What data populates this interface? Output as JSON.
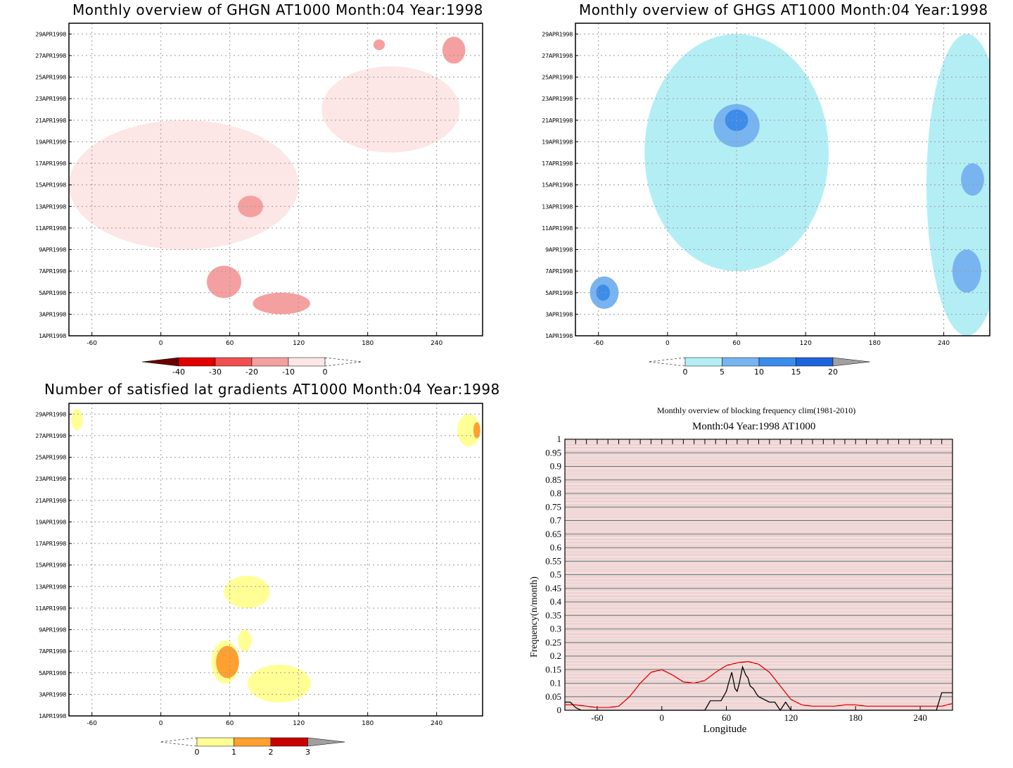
{
  "chart_data": [
    {
      "type": "heatmap",
      "title": "Monthly overview of GHGN AT1000 Month:04 Year:1998",
      "x_ticks": [
        "-60",
        "0",
        "60",
        "120",
        "180",
        "240"
      ],
      "y_ticks": [
        "1APR1998",
        "3APR1998",
        "5APR1998",
        "7APR1998",
        "9APR1998",
        "11APR1998",
        "13APR1998",
        "15APR1998",
        "17APR1998",
        "19APR1998",
        "21APR1998",
        "23APR1998",
        "25APR1998",
        "27APR1998",
        "29APR1998"
      ],
      "xlim": [
        -80,
        280
      ],
      "colorbar": {
        "labels": [
          "-40",
          "-30",
          "-20",
          "-10",
          "0"
        ],
        "colors": [
          "#6b0000",
          "#e00000",
          "#f05050",
          "#f5a0a0",
          "#fde6e6"
        ]
      },
      "regions": [
        {
          "level": "-10 to 0",
          "lon": 20,
          "day": 15,
          "lon_span": 200,
          "day_span": 12
        },
        {
          "level": "-10 to 0",
          "lon": 200,
          "day": 22,
          "lon_span": 120,
          "day_span": 8
        },
        {
          "level": "-20 to -10",
          "lon": 78,
          "day": 13,
          "lon_span": 22,
          "day_span": 2
        },
        {
          "level": "-20 to -10",
          "lon": 55,
          "day": 6,
          "lon_span": 30,
          "day_span": 3
        },
        {
          "level": "-20 to -10",
          "lon": 105,
          "day": 4,
          "lon_span": 50,
          "day_span": 2
        },
        {
          "level": "-20 to -10",
          "lon": 255,
          "day": 27.5,
          "lon_span": 20,
          "day_span": 2.5
        },
        {
          "level": "-20 to -10",
          "lon": 190,
          "day": 28,
          "lon_span": 10,
          "day_span": 1
        }
      ]
    },
    {
      "type": "heatmap",
      "title": "Monthly overview of GHGS AT1000 Month:04 Year:1998",
      "x_ticks": [
        "-60",
        "0",
        "60",
        "120",
        "180",
        "240"
      ],
      "y_ticks": [
        "1APR1998",
        "3APR1998",
        "5APR1998",
        "7APR1998",
        "9APR1998",
        "11APR1998",
        "13APR1998",
        "15APR1998",
        "17APR1998",
        "19APR1998",
        "21APR1998",
        "23APR1998",
        "25APR1998",
        "27APR1998",
        "29APR1998"
      ],
      "xlim": [
        -80,
        280
      ],
      "colorbar": {
        "labels": [
          "0",
          "5",
          "10",
          "15",
          "20"
        ],
        "colors": [
          "#b4eef5",
          "#78b4f0",
          "#3c8cea",
          "#1e64dc",
          "#a0a0a0"
        ]
      },
      "regions": [
        {
          "level": "0 to 5",
          "lon": 60,
          "day": 18,
          "lon_span": 160,
          "day_span": 22
        },
        {
          "level": "0 to 5",
          "lon": 260,
          "day": 15,
          "lon_span": 70,
          "day_span": 28
        },
        {
          "level": "5 to 10",
          "lon": 60,
          "day": 20.5,
          "lon_span": 40,
          "day_span": 4
        },
        {
          "level": "10 to 15",
          "lon": 60,
          "day": 21,
          "lon_span": 20,
          "day_span": 2
        },
        {
          "level": "5 to 10",
          "lon": -55,
          "day": 5,
          "lon_span": 25,
          "day_span": 3
        },
        {
          "level": "10 to 15",
          "lon": -56,
          "day": 5,
          "lon_span": 12,
          "day_span": 1.5
        },
        {
          "level": "5 to 10",
          "lon": 260,
          "day": 7,
          "lon_span": 25,
          "day_span": 4
        },
        {
          "level": "5 to 10",
          "lon": 265,
          "day": 15.5,
          "lon_span": 20,
          "day_span": 3
        }
      ]
    },
    {
      "type": "heatmap",
      "title": "Number of satisfied lat gradients AT1000 Month:04 Year:1998",
      "x_ticks": [
        "-60",
        "0",
        "60",
        "120",
        "180",
        "240"
      ],
      "y_ticks": [
        "1APR1998",
        "3APR1998",
        "5APR1998",
        "7APR1998",
        "9APR1998",
        "11APR1998",
        "13APR1998",
        "15APR1998",
        "17APR1998",
        "19APR1998",
        "21APR1998",
        "23APR1998",
        "25APR1998",
        "27APR1998",
        "29APR1998"
      ],
      "xlim": [
        -80,
        280
      ],
      "colorbar": {
        "labels": [
          "0",
          "1",
          "2",
          "3"
        ],
        "colors": [
          "#ffff96",
          "#ffa030",
          "#c80000",
          "#a0a0a0"
        ]
      },
      "regions": [
        {
          "level": "0 to 1",
          "lon": -73,
          "day": 28.5,
          "lon_span": 10,
          "day_span": 2
        },
        {
          "level": "0 to 1",
          "lon": 268,
          "day": 27.5,
          "lon_span": 20,
          "day_span": 3
        },
        {
          "level": "1 to 2",
          "lon": 275,
          "day": 27.5,
          "lon_span": 6,
          "day_span": 1.5
        },
        {
          "level": "0 to 1",
          "lon": 75,
          "day": 12.5,
          "lon_span": 40,
          "day_span": 3
        },
        {
          "level": "0 to 1",
          "lon": 73,
          "day": 8,
          "lon_span": 12,
          "day_span": 2
        },
        {
          "level": "0 to 1",
          "lon": 56,
          "day": 6,
          "lon_span": 24,
          "day_span": 4
        },
        {
          "level": "1 to 2",
          "lon": 58,
          "day": 6,
          "lon_span": 20,
          "day_span": 3
        },
        {
          "level": "0 to 1",
          "lon": 103,
          "day": 4,
          "lon_span": 55,
          "day_span": 3.5
        }
      ]
    },
    {
      "type": "line",
      "title": "Monthly overview of blocking frequency clim(1981-2010)",
      "subtitle": "Month:04 Year:1998  AT1000",
      "xlabel": "Longitude",
      "ylabel": "Frequency(n/month)",
      "xlim": [
        -90,
        270
      ],
      "ylim": [
        0,
        1
      ],
      "x_ticks": [
        "-60",
        "0",
        "60",
        "120",
        "180",
        "240"
      ],
      "y_ticks": [
        "0",
        "0.05",
        "0.1",
        "0.15",
        "0.2",
        "0.25",
        "0.3",
        "0.35",
        "0.4",
        "0.45",
        "0.5",
        "0.55",
        "0.6",
        "0.65",
        "0.7",
        "0.75",
        "0.8",
        "0.85",
        "0.9",
        "0.95",
        "1"
      ],
      "grid": true,
      "series": [
        {
          "color": "#e00000",
          "x": [
            -90,
            -80,
            -70,
            -60,
            -50,
            -40,
            -30,
            -20,
            -10,
            0,
            10,
            20,
            30,
            40,
            50,
            60,
            70,
            80,
            90,
            100,
            110,
            120,
            130,
            140,
            150,
            160,
            170,
            180,
            190,
            200,
            210,
            220,
            230,
            240,
            250,
            260,
            270
          ],
          "y": [
            0.02,
            0.02,
            0.015,
            0.01,
            0.01,
            0.015,
            0.05,
            0.1,
            0.14,
            0.15,
            0.13,
            0.105,
            0.1,
            0.11,
            0.14,
            0.165,
            0.175,
            0.18,
            0.17,
            0.14,
            0.09,
            0.04,
            0.02,
            0.015,
            0.015,
            0.015,
            0.02,
            0.02,
            0.015,
            0.015,
            0.015,
            0.015,
            0.015,
            0.015,
            0.015,
            0.015,
            0.025
          ]
        },
        {
          "color": "#000000",
          "x": [
            -90,
            -85,
            -80,
            -75,
            -70,
            -60,
            0,
            30,
            40,
            45,
            50,
            55,
            60,
            62,
            65,
            68,
            70,
            72,
            75,
            78,
            80,
            82,
            85,
            88,
            90,
            100,
            105,
            110,
            115,
            120,
            125,
            250,
            255,
            260,
            265,
            270
          ],
          "y": [
            0.03,
            0.03,
            0.01,
            0.0,
            0.0,
            0.0,
            0.0,
            0.0,
            0.0,
            0.035,
            0.035,
            0.035,
            0.07,
            0.1,
            0.14,
            0.08,
            0.07,
            0.1,
            0.16,
            0.13,
            0.12,
            0.09,
            0.08,
            0.06,
            0.05,
            0.03,
            0.03,
            0.0,
            0.03,
            0.0,
            0.0,
            0.0,
            0.0,
            0.065,
            0.065,
            0.065
          ]
        }
      ]
    }
  ]
}
